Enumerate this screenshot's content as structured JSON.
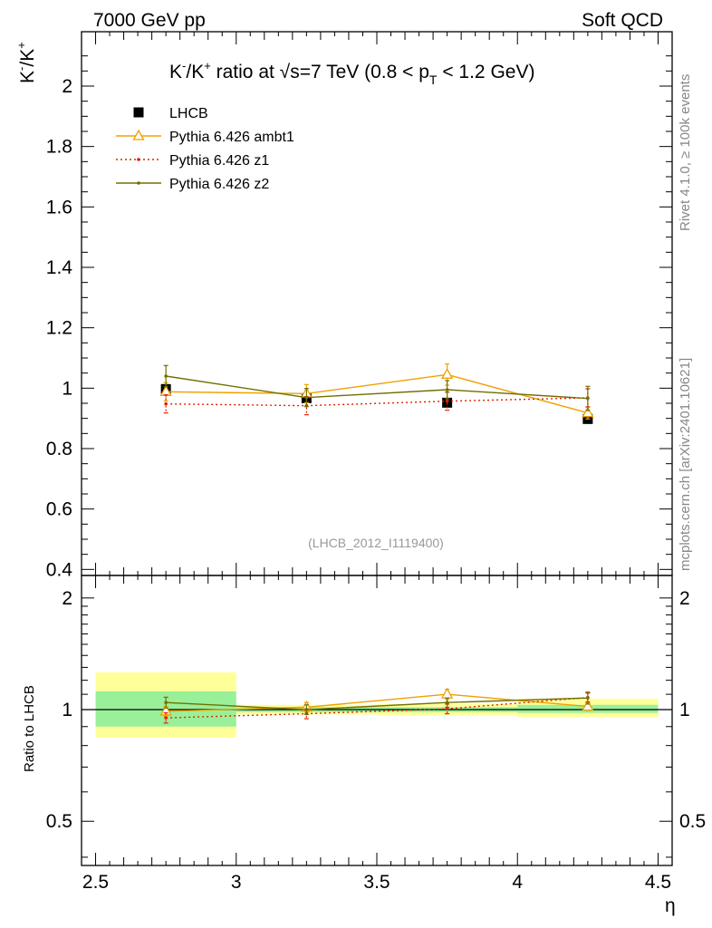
{
  "header": {
    "left": "7000 GeV pp",
    "right": "Soft QCD"
  },
  "side": {
    "rivet": "Rivet 4.1.0, ≥ 100k events",
    "mcplots": "mcplots.cern.ch [arXiv:2401.10621]"
  },
  "title": {
    "pre": "K",
    "sup1": "-",
    "mid": "/K",
    "sup2": "+",
    "ratio_at": " ratio at ",
    "sqrt": "√",
    "s_val": "s=7 TeV (0.8 < p",
    "sub_t": "T",
    "tail": " < 1.2 GeV)"
  },
  "ylabel_main": {
    "pre": "K",
    "sup1": "-",
    "mid": "/K",
    "sup2": "+"
  },
  "ylabel_ratio": "Ratio to LHCB",
  "xlabel": "η",
  "watermark": "(LHCB_2012_I1119400)",
  "legend": [
    {
      "name": "LHCB",
      "color": "#000000",
      "marker": "square",
      "style": "none"
    },
    {
      "name": "Pythia 6.426 ambt1",
      "color": "#f0a000",
      "marker": "triangle",
      "style": "solid"
    },
    {
      "name": "Pythia 6.426 z1",
      "color": "#e02000",
      "marker": "dot",
      "style": "dotted"
    },
    {
      "name": "Pythia 6.426 z2",
      "color": "#707000",
      "marker": "dot",
      "style": "solid"
    }
  ],
  "chart_data": {
    "type": "line",
    "x": [
      2.75,
      3.25,
      3.75,
      4.25
    ],
    "bin_edges": [
      2.5,
      3.0,
      3.5,
      4.0,
      4.5
    ],
    "xlim": [
      2.45,
      4.55
    ],
    "ylim": [
      0.38,
      2.18
    ],
    "xticks": [
      2.5,
      3,
      3.5,
      4,
      4.5
    ],
    "xtick_labels": [
      "2.5",
      "3",
      "3.5",
      "4",
      "4.5"
    ],
    "yticks": [
      0.4,
      0.6,
      0.8,
      1,
      1.2,
      1.4,
      1.6,
      1.8,
      2
    ],
    "ytick_labels": [
      "0.4",
      "0.6",
      "0.8",
      "1",
      "1.2",
      "1.4",
      "1.6",
      "1.8",
      "2"
    ],
    "data": {
      "name": "LHCB",
      "values": [
        0.997,
        0.967,
        0.952,
        0.898
      ],
      "errors": [
        0.02,
        0.015,
        0.015,
        0.015
      ]
    },
    "series": [
      {
        "name": "Pythia 6.426 ambt1",
        "values": [
          0.988,
          0.982,
          1.045,
          0.918
        ],
        "errors": [
          0.03,
          0.03,
          0.035,
          0.02
        ]
      },
      {
        "name": "Pythia 6.426 z1",
        "values": [
          0.948,
          0.942,
          0.957,
          0.968
        ],
        "errors": [
          0.03,
          0.03,
          0.03,
          0.03
        ]
      },
      {
        "name": "Pythia 6.426 z2",
        "values": [
          1.04,
          0.969,
          0.995,
          0.966
        ],
        "errors": [
          0.035,
          0.03,
          0.03,
          0.04
        ]
      }
    ],
    "ratio": {
      "ylabel": "Ratio to LHCB",
      "ylim": [
        0.38,
        2.3
      ],
      "yscale": "log",
      "yticks": [
        0.5,
        1,
        2
      ],
      "ytick_labels": [
        "0.5",
        "1",
        "2"
      ],
      "band_inner": [
        [
          0.9,
          1.12
        ],
        [
          0.985,
          1.015
        ],
        [
          0.985,
          1.015
        ],
        [
          0.98,
          1.03
        ]
      ],
      "band_outer": [
        [
          0.84,
          1.26
        ],
        [
          0.97,
          1.03
        ],
        [
          0.965,
          1.035
        ],
        [
          0.955,
          1.07
        ]
      ],
      "series": [
        {
          "name": "Pythia 6.426 ambt1",
          "values": [
            0.99,
            1.015,
            1.1,
            1.02
          ],
          "errors": [
            0.03,
            0.03,
            0.035,
            0.025
          ]
        },
        {
          "name": "Pythia 6.426 z1",
          "values": [
            0.95,
            0.975,
            1.005,
            1.078
          ],
          "errors": [
            0.03,
            0.03,
            0.03,
            0.03
          ]
        },
        {
          "name": "Pythia 6.426 z2",
          "values": [
            1.045,
            1.0,
            1.045,
            1.075
          ],
          "errors": [
            0.035,
            0.03,
            0.03,
            0.04
          ]
        }
      ]
    }
  }
}
